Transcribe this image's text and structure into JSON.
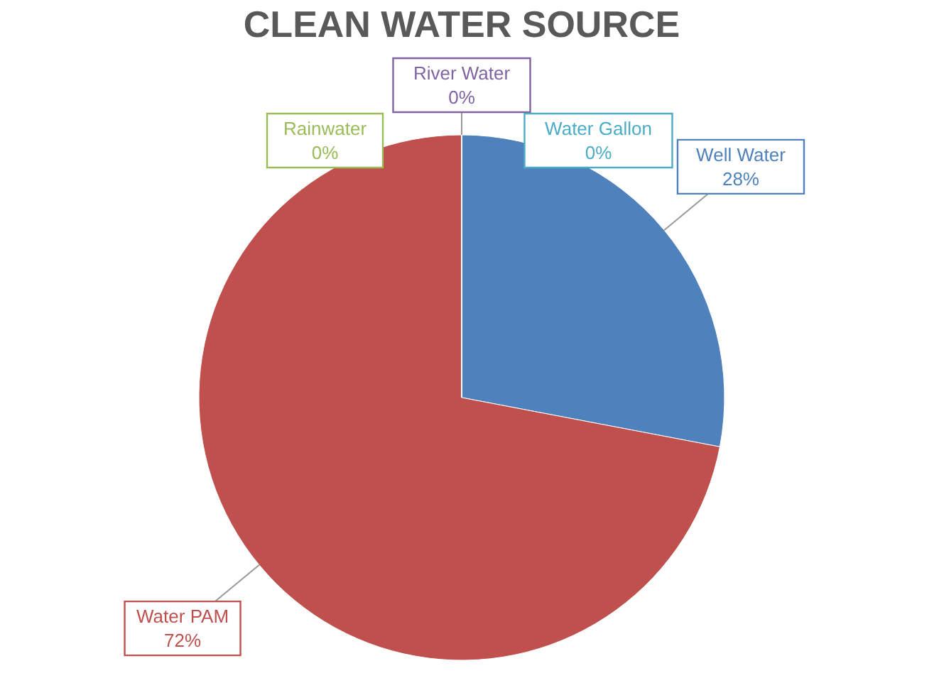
{
  "chart_data": {
    "type": "pie",
    "title": "CLEAN WATER SOURCE",
    "categories": [
      "Well Water",
      "Water PAM",
      "Rainwater",
      "River Water",
      "Water Gallon"
    ],
    "values": [
      28,
      72,
      0,
      0,
      0
    ],
    "colors": [
      "#4f81bd",
      "#c0504d",
      "#9bbb59",
      "#8064a2",
      "#4bacc6"
    ],
    "value_labels": [
      "28%",
      "72%",
      "0%",
      "0%",
      "0%"
    ],
    "legend": false
  }
}
